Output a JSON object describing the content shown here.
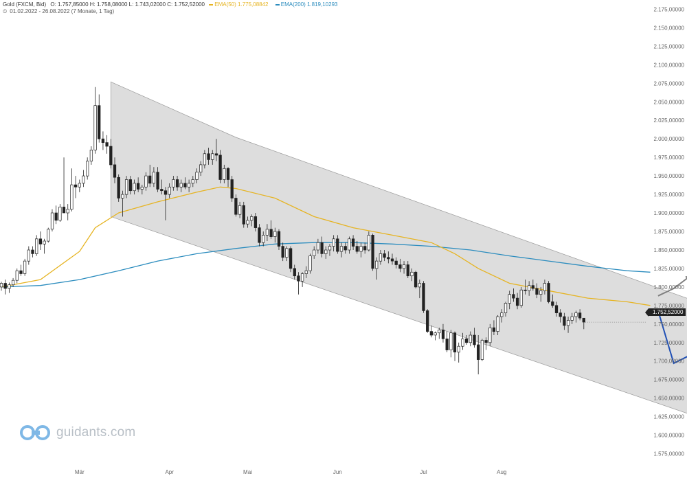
{
  "header": {
    "instrument": "Gold (FXCM, Bid)",
    "ohlc": "O: 1.757,85000  H: 1.758,08000  L: 1.743,02000  C: 1.752,52000",
    "ema50_label": "EMA(50)  1.775,08842",
    "ema200_label": "EMA(200)  1.819,10293",
    "range": "01.02.2022 - 26.08.2022  (7 Monate, 1 Tag)"
  },
  "logo_text": "guidants.com",
  "last_price_label": "1.752,52000",
  "colors": {
    "ema50": "#e6b422",
    "ema200": "#2b8cbe",
    "forecast_down": "#1f4fb5",
    "forecast_up": "#808080",
    "channel": "#d9d9d9"
  },
  "chart_data": {
    "type": "candlestick",
    "y_range": [
      1562.5,
      2187.5
    ],
    "y_ticks": [
      {
        "v": 2175,
        "label": "2.175,00000"
      },
      {
        "v": 2150,
        "label": "2.150,00000"
      },
      {
        "v": 2125,
        "label": "2.125,00000"
      },
      {
        "v": 2100,
        "label": "2.100,00000"
      },
      {
        "v": 2075,
        "label": "2.075,00000"
      },
      {
        "v": 2050,
        "label": "2.050,00000"
      },
      {
        "v": 2025,
        "label": "2.025,00000"
      },
      {
        "v": 2000,
        "label": "2.000,00000"
      },
      {
        "v": 1975,
        "label": "1.975,00000"
      },
      {
        "v": 1950,
        "label": "1.950,00000"
      },
      {
        "v": 1925,
        "label": "1.925,00000"
      },
      {
        "v": 1900,
        "label": "1.900,00000"
      },
      {
        "v": 1875,
        "label": "1.875,00000"
      },
      {
        "v": 1850,
        "label": "1.850,00000"
      },
      {
        "v": 1825,
        "label": "1.825,00000"
      },
      {
        "v": 1800,
        "label": "1.800,00000"
      },
      {
        "v": 1775,
        "label": "1.775,00000"
      },
      {
        "v": 1750,
        "label": "1.750,00000"
      },
      {
        "v": 1725,
        "label": "1.725,00000"
      },
      {
        "v": 1700,
        "label": "1.700,00000"
      },
      {
        "v": 1675,
        "label": "1.675,00000"
      },
      {
        "v": 1650,
        "label": "1.650,00000"
      },
      {
        "v": 1625,
        "label": "1.625,00000"
      },
      {
        "v": 1600,
        "label": "1.600,00000"
      },
      {
        "v": 1575,
        "label": "1.575,00000"
      }
    ],
    "x_ticks": [
      {
        "t": 20,
        "label": "Mär"
      },
      {
        "t": 43,
        "label": "Apr"
      },
      {
        "t": 63,
        "label": "Mai"
      },
      {
        "t": 86,
        "label": "Jun"
      },
      {
        "t": 108,
        "label": "Jul"
      },
      {
        "t": 128,
        "label": "Aug"
      }
    ],
    "x_range": [
      -1,
      176
    ],
    "candles": [
      [
        0,
        1800,
        1807,
        1795,
        1805
      ],
      [
        1,
        1805,
        1810,
        1790,
        1798
      ],
      [
        2,
        1798,
        1806,
        1792,
        1803
      ],
      [
        3,
        1803,
        1812,
        1800,
        1809
      ],
      [
        4,
        1809,
        1825,
        1805,
        1822
      ],
      [
        5,
        1822,
        1830,
        1815,
        1818
      ],
      [
        6,
        1818,
        1838,
        1815,
        1835
      ],
      [
        7,
        1835,
        1855,
        1830,
        1850
      ],
      [
        8,
        1850,
        1855,
        1840,
        1845
      ],
      [
        9,
        1845,
        1870,
        1842,
        1865
      ],
      [
        10,
        1865,
        1875,
        1850,
        1858
      ],
      [
        11,
        1858,
        1865,
        1845,
        1862
      ],
      [
        12,
        1862,
        1880,
        1860,
        1878
      ],
      [
        13,
        1878,
        1905,
        1875,
        1900
      ],
      [
        14,
        1900,
        1910,
        1885,
        1890
      ],
      [
        15,
        1890,
        1912,
        1888,
        1908
      ],
      [
        16,
        1908,
        1975,
        1903,
        1900
      ],
      [
        17,
        1900,
        1912,
        1890,
        1905
      ],
      [
        18,
        1905,
        1960,
        1902,
        1938
      ],
      [
        19,
        1938,
        1950,
        1920,
        1935
      ],
      [
        20,
        1935,
        1945,
        1928,
        1940
      ],
      [
        21,
        1940,
        1958,
        1935,
        1950
      ],
      [
        22,
        1950,
        1975,
        1945,
        1970
      ],
      [
        23,
        1970,
        1990,
        1965,
        1985
      ],
      [
        24,
        1985,
        2070,
        1980,
        2045
      ],
      [
        25,
        2045,
        2060,
        1995,
        2000
      ],
      [
        26,
        2000,
        2010,
        1985,
        1995
      ],
      [
        27,
        1995,
        2005,
        1980,
        1990
      ],
      [
        28,
        1990,
        2000,
        1960,
        1965
      ],
      [
        29,
        1965,
        1975,
        1940,
        1948
      ],
      [
        30,
        1948,
        1952,
        1915,
        1920
      ],
      [
        31,
        1920,
        1930,
        1895,
        1925
      ],
      [
        32,
        1925,
        1950,
        1920,
        1945
      ],
      [
        33,
        1945,
        1950,
        1925,
        1930
      ],
      [
        34,
        1930,
        1945,
        1925,
        1940
      ],
      [
        35,
        1940,
        1948,
        1928,
        1932
      ],
      [
        36,
        1932,
        1938,
        1925,
        1935
      ],
      [
        37,
        1935,
        1955,
        1930,
        1950
      ],
      [
        38,
        1950,
        1965,
        1935,
        1940
      ],
      [
        39,
        1940,
        1962,
        1935,
        1955
      ],
      [
        40,
        1955,
        1962,
        1928,
        1932
      ],
      [
        41,
        1932,
        1945,
        1925,
        1930
      ],
      [
        42,
        1930,
        1935,
        1890,
        1925
      ],
      [
        43,
        1925,
        1940,
        1920,
        1935
      ],
      [
        44,
        1935,
        1950,
        1930,
        1945
      ],
      [
        45,
        1945,
        1950,
        1930,
        1935
      ],
      [
        46,
        1935,
        1945,
        1928,
        1940
      ],
      [
        47,
        1940,
        1948,
        1932,
        1935
      ],
      [
        48,
        1935,
        1945,
        1928,
        1940
      ],
      [
        49,
        1940,
        1950,
        1935,
        1945
      ],
      [
        50,
        1945,
        1960,
        1940,
        1955
      ],
      [
        51,
        1955,
        1970,
        1950,
        1965
      ],
      [
        52,
        1965,
        1985,
        1960,
        1980
      ],
      [
        53,
        1980,
        1988,
        1965,
        1972
      ],
      [
        54,
        1972,
        1985,
        1965,
        1980
      ],
      [
        55,
        1980,
        2000,
        1970,
        1978
      ],
      [
        56,
        1978,
        1985,
        1940,
        1945
      ],
      [
        57,
        1945,
        1965,
        1940,
        1960
      ],
      [
        58,
        1960,
        1962,
        1935,
        1945
      ],
      [
        59,
        1945,
        1950,
        1915,
        1920
      ],
      [
        60,
        1920,
        1925,
        1895,
        1898
      ],
      [
        61,
        1898,
        1915,
        1893,
        1910
      ],
      [
        62,
        1910,
        1915,
        1880,
        1885
      ],
      [
        63,
        1885,
        1895,
        1880,
        1890
      ],
      [
        64,
        1890,
        1898,
        1882,
        1895
      ],
      [
        65,
        1895,
        1900,
        1875,
        1880
      ],
      [
        66,
        1880,
        1885,
        1855,
        1860
      ],
      [
        67,
        1860,
        1875,
        1855,
        1870
      ],
      [
        68,
        1870,
        1885,
        1862,
        1878
      ],
      [
        69,
        1878,
        1890,
        1865,
        1868
      ],
      [
        70,
        1868,
        1880,
        1860,
        1875
      ],
      [
        71,
        1875,
        1878,
        1850,
        1855
      ],
      [
        72,
        1855,
        1860,
        1835,
        1840
      ],
      [
        73,
        1840,
        1855,
        1835,
        1852
      ],
      [
        74,
        1852,
        1855,
        1820,
        1825
      ],
      [
        75,
        1825,
        1830,
        1810,
        1815
      ],
      [
        76,
        1815,
        1820,
        1790,
        1808
      ],
      [
        77,
        1808,
        1820,
        1800,
        1818
      ],
      [
        78,
        1818,
        1828,
        1812,
        1822
      ],
      [
        79,
        1822,
        1845,
        1818,
        1842
      ],
      [
        80,
        1842,
        1855,
        1838,
        1850
      ],
      [
        81,
        1850,
        1865,
        1845,
        1860
      ],
      [
        82,
        1860,
        1868,
        1840,
        1845
      ],
      [
        83,
        1845,
        1855,
        1838,
        1850
      ],
      [
        84,
        1850,
        1858,
        1842,
        1855
      ],
      [
        85,
        1855,
        1870,
        1848,
        1865
      ],
      [
        86,
        1865,
        1870,
        1845,
        1848
      ],
      [
        87,
        1848,
        1860,
        1840,
        1855
      ],
      [
        88,
        1855,
        1860,
        1845,
        1850
      ],
      [
        89,
        1850,
        1868,
        1845,
        1865
      ],
      [
        90,
        1865,
        1870,
        1850,
        1855
      ],
      [
        91,
        1855,
        1862,
        1845,
        1848
      ],
      [
        92,
        1848,
        1860,
        1840,
        1855
      ],
      [
        93,
        1855,
        1860,
        1845,
        1850
      ],
      [
        94,
        1850,
        1875,
        1848,
        1870
      ],
      [
        95,
        1870,
        1872,
        1822,
        1825
      ],
      [
        96,
        1825,
        1840,
        1810,
        1835
      ],
      [
        97,
        1835,
        1850,
        1830,
        1845
      ],
      [
        98,
        1845,
        1850,
        1835,
        1840
      ],
      [
        99,
        1840,
        1848,
        1832,
        1838
      ],
      [
        100,
        1838,
        1845,
        1830,
        1835
      ],
      [
        101,
        1835,
        1840,
        1825,
        1830
      ],
      [
        102,
        1830,
        1838,
        1820,
        1825
      ],
      [
        103,
        1825,
        1835,
        1818,
        1830
      ],
      [
        104,
        1830,
        1835,
        1812,
        1815
      ],
      [
        105,
        1815,
        1825,
        1808,
        1820
      ],
      [
        106,
        1820,
        1822,
        1798,
        1800
      ],
      [
        107,
        1800,
        1810,
        1785,
        1805
      ],
      [
        108,
        1805,
        1808,
        1765,
        1768
      ],
      [
        109,
        1768,
        1770,
        1738,
        1740
      ],
      [
        110,
        1740,
        1748,
        1732,
        1735
      ],
      [
        111,
        1735,
        1740,
        1728,
        1738
      ],
      [
        112,
        1738,
        1745,
        1730,
        1742
      ],
      [
        113,
        1742,
        1750,
        1725,
        1730
      ],
      [
        114,
        1730,
        1740,
        1712,
        1715
      ],
      [
        115,
        1715,
        1742,
        1705,
        1738
      ],
      [
        116,
        1738,
        1740,
        1700,
        1712
      ],
      [
        117,
        1712,
        1725,
        1698,
        1720
      ],
      [
        118,
        1720,
        1738,
        1715,
        1730
      ],
      [
        119,
        1730,
        1735,
        1722,
        1725
      ],
      [
        120,
        1725,
        1740,
        1720,
        1735
      ],
      [
        121,
        1735,
        1745,
        1718,
        1722
      ],
      [
        122,
        1722,
        1735,
        1682,
        1702
      ],
      [
        123,
        1702,
        1730,
        1700,
        1728
      ],
      [
        124,
        1728,
        1732,
        1715,
        1725
      ],
      [
        125,
        1725,
        1750,
        1720,
        1745
      ],
      [
        126,
        1745,
        1755,
        1735,
        1740
      ],
      [
        127,
        1740,
        1762,
        1735,
        1760
      ],
      [
        128,
        1760,
        1770,
        1752,
        1765
      ],
      [
        129,
        1765,
        1780,
        1760,
        1778
      ],
      [
        130,
        1778,
        1795,
        1770,
        1790
      ],
      [
        131,
        1790,
        1798,
        1780,
        1785
      ],
      [
        132,
        1785,
        1792,
        1770,
        1775
      ],
      [
        133,
        1775,
        1800,
        1772,
        1796
      ],
      [
        134,
        1796,
        1810,
        1790,
        1795
      ],
      [
        135,
        1795,
        1808,
        1788,
        1802
      ],
      [
        136,
        1802,
        1810,
        1795,
        1798
      ],
      [
        137,
        1798,
        1805,
        1785,
        1790
      ],
      [
        138,
        1790,
        1800,
        1780,
        1795
      ],
      [
        139,
        1795,
        1810,
        1790,
        1805
      ],
      [
        140,
        1805,
        1808,
        1778,
        1780
      ],
      [
        141,
        1780,
        1790,
        1772,
        1775
      ],
      [
        142,
        1775,
        1780,
        1760,
        1765
      ],
      [
        143,
        1765,
        1770,
        1752,
        1760
      ],
      [
        144,
        1760,
        1765,
        1742,
        1748
      ],
      [
        145,
        1748,
        1760,
        1738,
        1755
      ],
      [
        146,
        1755,
        1765,
        1750,
        1760
      ],
      [
        147,
        1760,
        1768,
        1752,
        1765
      ],
      [
        148,
        1765,
        1770,
        1755,
        1758
      ],
      [
        149,
        1757.85,
        1758.08,
        1743.02,
        1752.52
      ]
    ],
    "ema50": [
      [
        0,
        1800
      ],
      [
        10,
        1810
      ],
      [
        20,
        1848
      ],
      [
        24,
        1880
      ],
      [
        30,
        1900
      ],
      [
        40,
        1915
      ],
      [
        50,
        1928
      ],
      [
        56,
        1935
      ],
      [
        60,
        1933
      ],
      [
        70,
        1920
      ],
      [
        80,
        1895
      ],
      [
        90,
        1880
      ],
      [
        100,
        1870
      ],
      [
        110,
        1860
      ],
      [
        116,
        1845
      ],
      [
        122,
        1825
      ],
      [
        130,
        1805
      ],
      [
        140,
        1795
      ],
      [
        150,
        1785
      ],
      [
        160,
        1780
      ],
      [
        166,
        1775
      ]
    ],
    "ema200": [
      [
        0,
        1800
      ],
      [
        10,
        1802
      ],
      [
        20,
        1810
      ],
      [
        30,
        1822
      ],
      [
        40,
        1835
      ],
      [
        50,
        1845
      ],
      [
        60,
        1852
      ],
      [
        70,
        1858
      ],
      [
        80,
        1860
      ],
      [
        90,
        1860
      ],
      [
        100,
        1858
      ],
      [
        110,
        1855
      ],
      [
        120,
        1850
      ],
      [
        130,
        1842
      ],
      [
        140,
        1835
      ],
      [
        150,
        1828
      ],
      [
        160,
        1822
      ],
      [
        166,
        1820
      ]
    ],
    "channel": [
      [
        28,
        2077
      ],
      [
        60,
        2002
      ],
      [
        179,
        1778
      ],
      [
        179,
        1623
      ],
      [
        28,
        1895
      ]
    ],
    "forecast_down": [
      [
        168,
        1768
      ],
      [
        172,
        1697
      ],
      [
        177,
        1710
      ],
      [
        182,
        1628
      ]
    ],
    "forecast_up": [
      [
        168,
        1788
      ],
      [
        172,
        1798
      ],
      [
        176,
        1814
      ]
    ],
    "last_price": 1752.52
  }
}
